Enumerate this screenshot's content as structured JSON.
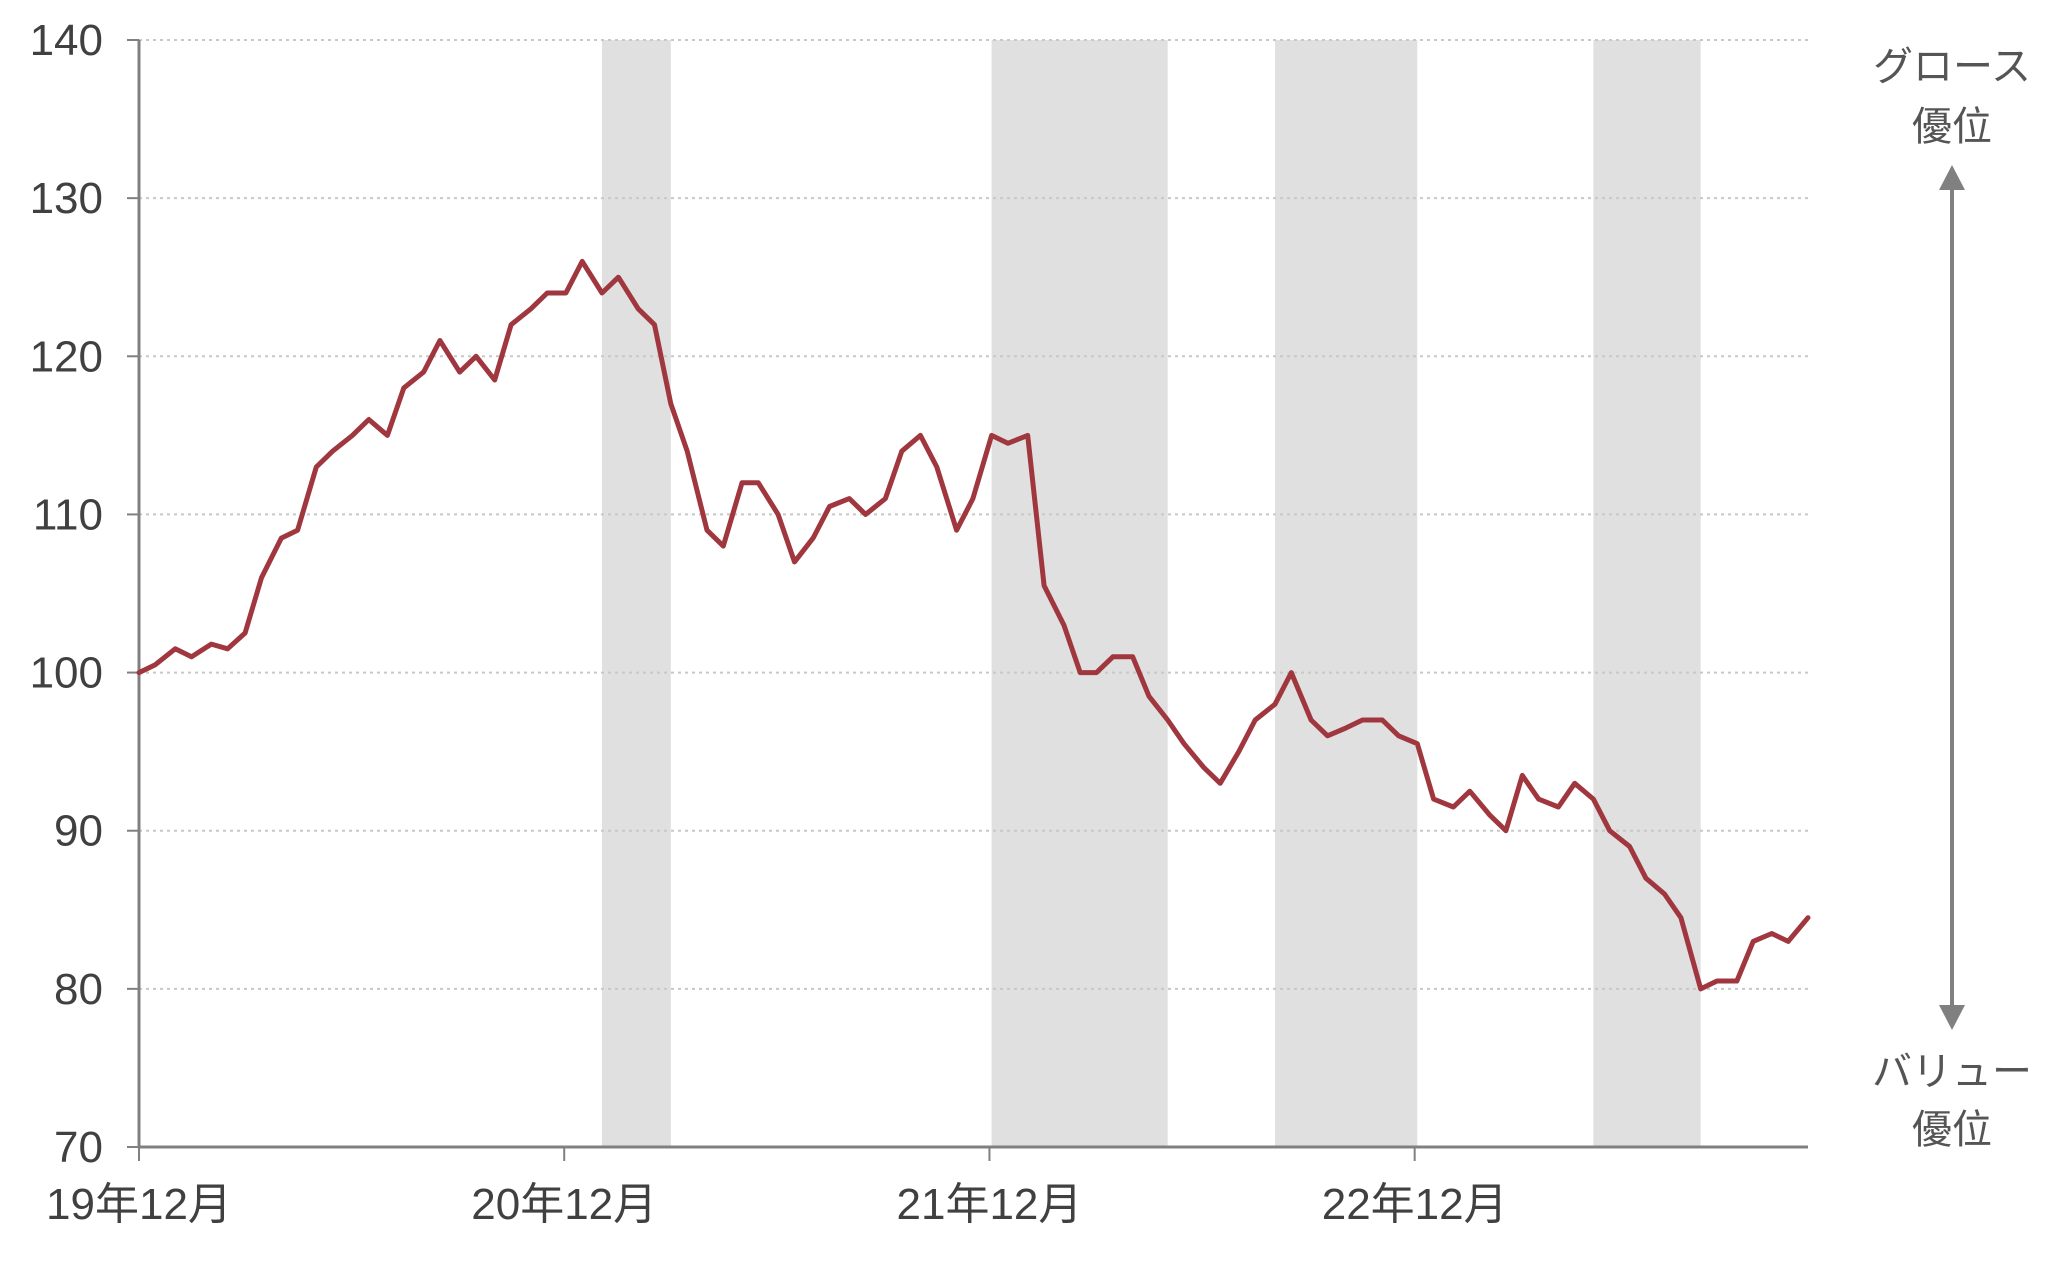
{
  "chart_data": {
    "type": "line",
    "title": "",
    "xlabel": "",
    "ylabel": "",
    "ylim": [
      70,
      140
    ],
    "yticks": [
      70,
      80,
      90,
      100,
      110,
      120,
      130,
      140
    ],
    "xticks": [
      "19年12月",
      "20年12月",
      "21年12月",
      "22年12月"
    ],
    "grid": "horizontal-dotted",
    "legend": "none",
    "line_color": "#A0373F",
    "shade_color": "#E0E0E0",
    "shaded_periods": [
      {
        "start": "2021-01",
        "end": "2021-03"
      },
      {
        "start": "2021-12",
        "end": "2022-05"
      },
      {
        "start": "2022-08",
        "end": "2022-12"
      },
      {
        "start": "2023-05",
        "end": "2023-08"
      }
    ],
    "annotations": {
      "top_line1": "グロース",
      "top_line2": "優位",
      "bottom_line1": "バリュー",
      "bottom_line2": "優位"
    },
    "series": [
      {
        "x": [
          "2019-12-01",
          "2019-12-15",
          "2020-01-01",
          "2020-01-15",
          "2020-02-01",
          "2020-02-15",
          "2020-03-01",
          "2020-03-15",
          "2020-04-01",
          "2020-04-15",
          "2020-05-01",
          "2020-05-15",
          "2020-06-01",
          "2020-06-15",
          "2020-07-01",
          "2020-07-15",
          "2020-08-01",
          "2020-08-15",
          "2020-09-01",
          "2020-09-15",
          "2020-10-01",
          "2020-10-15",
          "2020-11-01",
          "2020-11-15",
          "2020-12-01",
          "2020-12-15",
          "2021-01-01",
          "2021-01-15",
          "2021-02-01",
          "2021-02-15",
          "2021-03-01",
          "2021-03-15",
          "2021-04-01",
          "2021-04-15",
          "2021-05-01",
          "2021-05-15",
          "2021-06-01",
          "2021-06-15",
          "2021-07-01",
          "2021-07-15",
          "2021-08-01",
          "2021-08-15",
          "2021-09-01",
          "2021-09-15",
          "2021-10-01",
          "2021-10-15",
          "2021-11-01",
          "2021-11-15",
          "2021-12-01",
          "2021-12-15",
          "2022-01-01",
          "2022-01-15",
          "2022-02-01",
          "2022-02-15",
          "2022-03-01",
          "2022-03-15",
          "2022-04-01",
          "2022-04-15",
          "2022-05-01",
          "2022-05-15",
          "2022-06-01",
          "2022-06-15",
          "2022-07-01",
          "2022-07-15",
          "2022-08-01",
          "2022-08-15",
          "2022-09-01",
          "2022-09-15",
          "2022-10-01",
          "2022-10-15",
          "2022-11-01",
          "2022-11-15",
          "2022-12-01",
          "2022-12-15",
          "2023-01-01",
          "2023-01-15",
          "2023-02-01",
          "2023-02-15",
          "2023-03-01",
          "2023-03-15",
          "2023-04-01",
          "2023-04-15",
          "2023-05-01",
          "2023-05-15",
          "2023-06-01",
          "2023-06-15",
          "2023-07-01",
          "2023-07-15",
          "2023-08-01",
          "2023-08-15",
          "2023-09-01",
          "2023-09-15",
          "2023-10-01",
          "2023-10-15",
          "2023-11-01"
        ],
        "values": [
          100,
          100.5,
          101.5,
          101,
          101.8,
          101.5,
          102.5,
          106,
          108.5,
          109,
          113,
          114,
          115,
          116,
          115,
          118,
          119,
          121,
          119,
          120,
          118.5,
          122,
          123,
          124,
          124,
          126,
          124,
          125,
          123,
          122,
          117,
          114,
          109,
          108,
          112,
          112,
          110,
          107,
          108.5,
          110.5,
          111,
          110,
          111,
          114,
          115,
          113,
          109,
          111,
          115,
          114.5,
          115,
          105.5,
          103,
          100,
          100,
          101,
          101,
          98.5,
          97,
          95.5,
          94,
          93,
          95,
          97,
          98,
          100,
          97,
          96,
          96.5,
          97,
          97,
          96,
          95.5,
          92,
          91.5,
          92.5,
          91,
          90,
          93.5,
          92,
          91.5,
          93,
          92,
          90,
          89,
          87,
          86,
          84.5,
          80,
          80.5,
          80.5,
          83,
          83.5,
          83,
          84.5
        ]
      }
    ]
  }
}
